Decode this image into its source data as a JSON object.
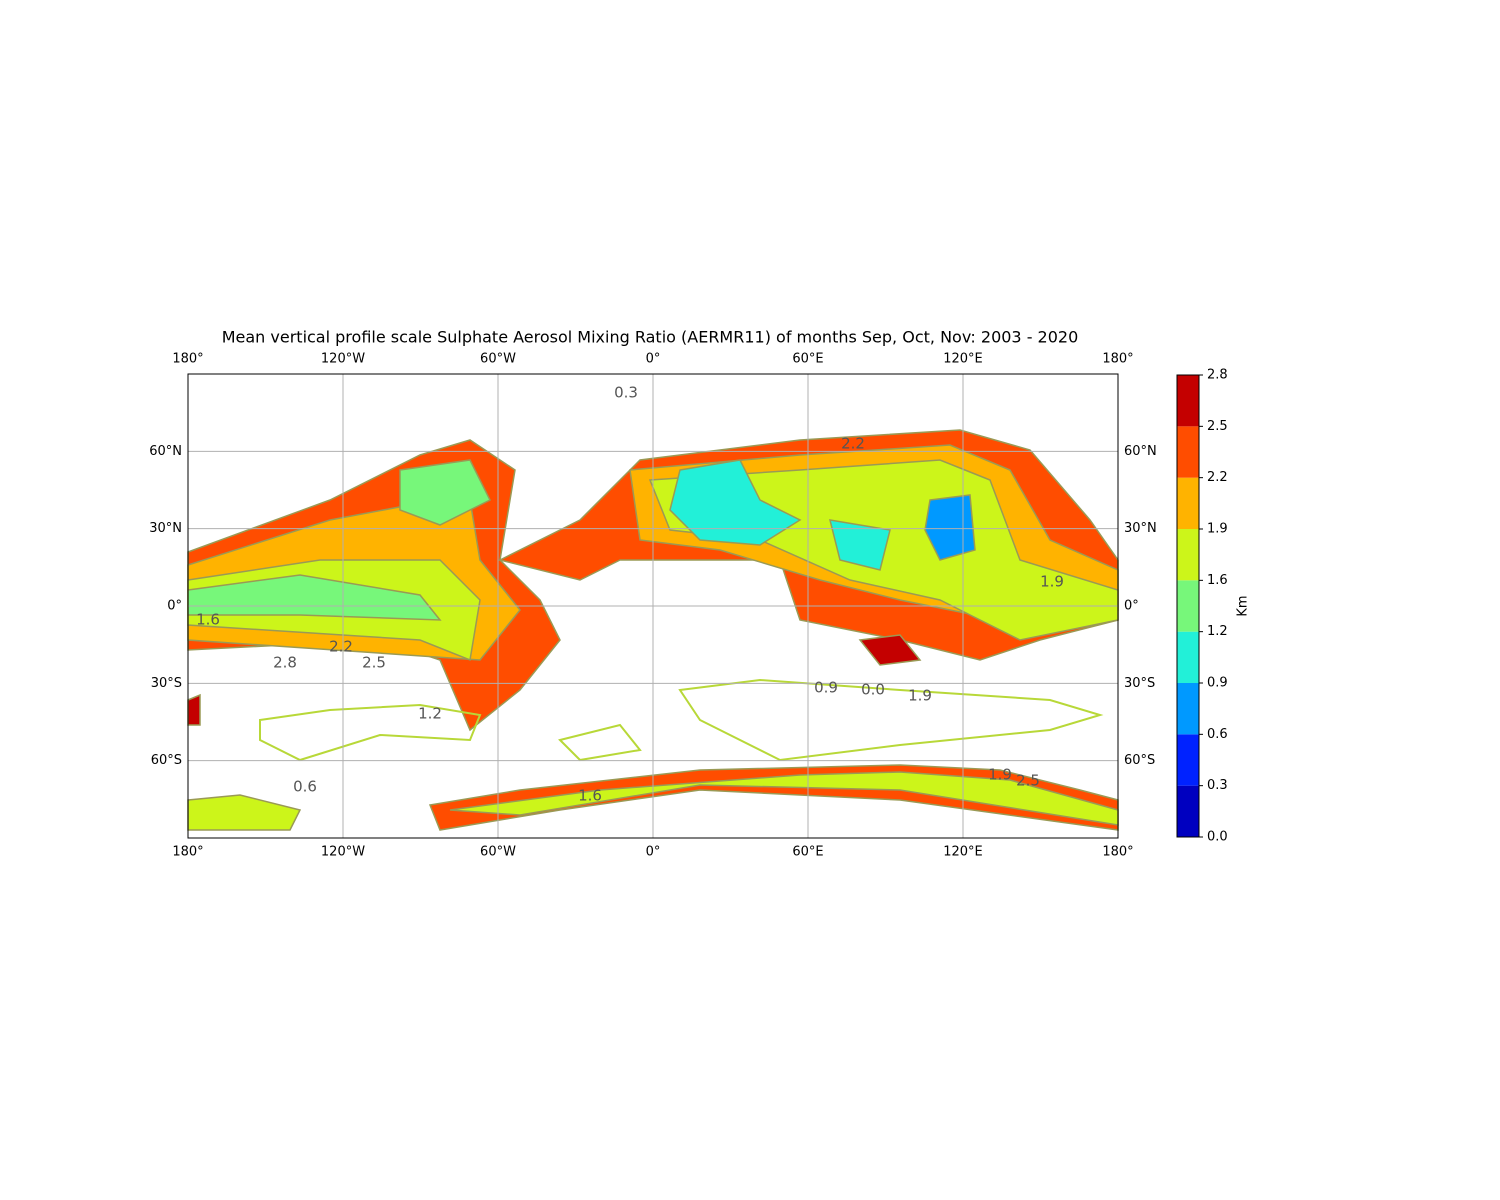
{
  "chart_data": {
    "type": "map",
    "title": "Mean vertical profile scale Sulphate Aerosol Mixing Ratio (AERMR11) of months Sep, Oct, Nov:  2003 - 2020",
    "xlim": [
      -180,
      180
    ],
    "ylim": [
      -90,
      90
    ],
    "xticks": [
      {
        "value": -180,
        "label": "180°"
      },
      {
        "value": -120,
        "label": "120°W"
      },
      {
        "value": -60,
        "label": "60°W"
      },
      {
        "value": 0,
        "label": "0°"
      },
      {
        "value": 60,
        "label": "60°E"
      },
      {
        "value": 120,
        "label": "120°E"
      },
      {
        "value": 180,
        "label": "180°"
      }
    ],
    "yticks": [
      {
        "value": 60,
        "label": "60°N"
      },
      {
        "value": 30,
        "label": "30°N"
      },
      {
        "value": 0,
        "label": "0°"
      },
      {
        "value": -30,
        "label": "30°S"
      },
      {
        "value": -60,
        "label": "60°S"
      }
    ],
    "grid": true,
    "colorbar": {
      "label": "Km",
      "ticks": [
        {
          "value": 0,
          "label": "0.0"
        },
        0.3,
        0.6,
        0.9,
        1.2,
        1.6,
        1.9,
        2.2,
        2.5,
        2.8
      ],
      "colors": [
        "#0000c0",
        "#0022ff",
        "#0099ff",
        "#22f0d8",
        "#77f77a",
        "#ccf51a",
        "#ffb300",
        "#ff4d00",
        "#c40000"
      ]
    },
    "contour_labels": [
      "2.2",
      "1.9",
      "1.6",
      "2.5",
      "2.8",
      "1.2",
      "0.9",
      "0.3",
      "0.6",
      "0.0",
      "2.2",
      "1.9",
      "1.6",
      "2.5",
      "1.9"
    ]
  }
}
